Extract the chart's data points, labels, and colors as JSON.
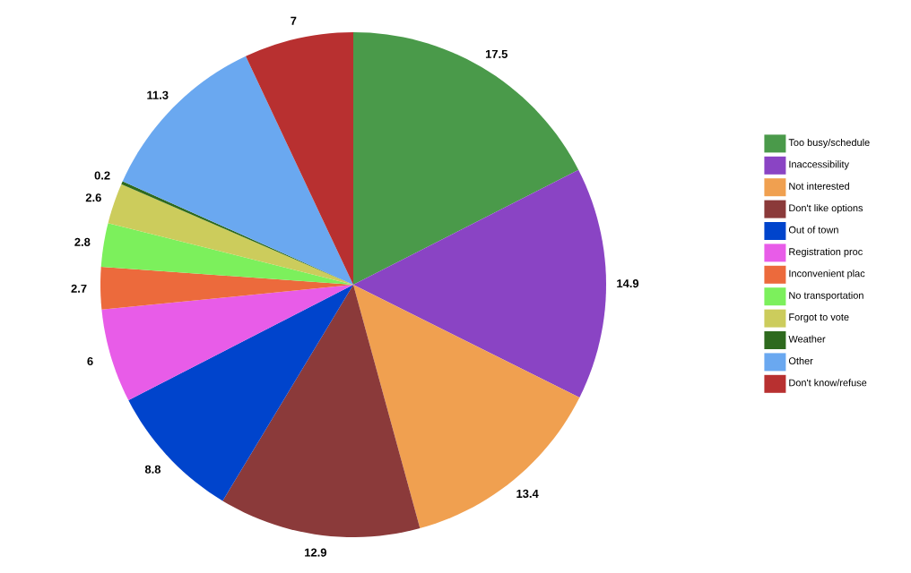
{
  "chart_data": {
    "type": "pie",
    "categories": [
      "Too busy/schedule",
      "Inaccessibility",
      "Not interested",
      "Don't like options",
      "Out of town",
      "Registration proc",
      "Inconvenient plac",
      "No transportation",
      "Forgot to vote",
      "Weather",
      "Other",
      "Don't know/refuse"
    ],
    "values": [
      17.5,
      14.9,
      13.4,
      12.9,
      8.8,
      6,
      2.7,
      2.8,
      2.6,
      0.2,
      11.3,
      7
    ],
    "colors": [
      "#4a9a4a",
      "#8a44c4",
      "#f0a050",
      "#8b3a3a",
      "#0044cc",
      "#e85ce8",
      "#ec6a3c",
      "#7cf05c",
      "#cccc5c",
      "#2e6a1e",
      "#6aa8f0",
      "#b83030"
    ],
    "data_labels": true,
    "legend": "right"
  }
}
